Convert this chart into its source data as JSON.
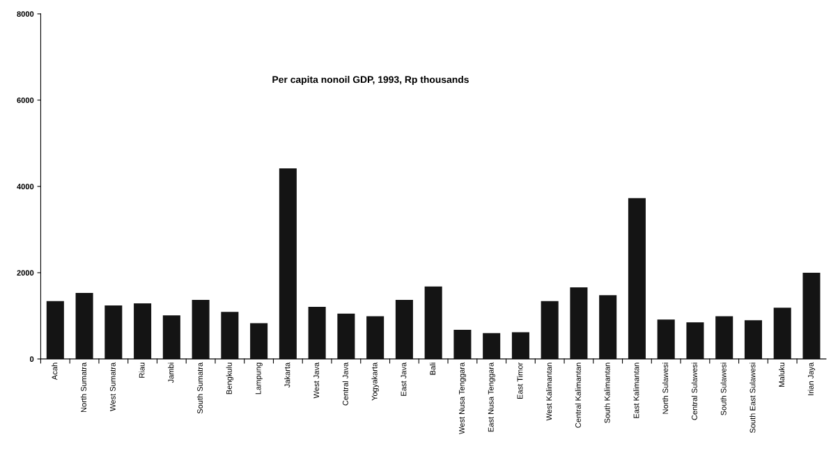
{
  "chart_data": {
    "type": "bar",
    "title": "Per capita nonoil GDP, 1993, Rp thousands",
    "categories": [
      "Acah",
      "North Sumatra",
      "West Sumatra",
      "Riau",
      "Jambi",
      "South Sumatra",
      "Bengkulu",
      "Lampung",
      "Jakarta",
      "West Java",
      "Central Java",
      "Yogyakarta",
      "East Java",
      "Bali",
      "West Nusa Tenggara",
      "East Nusa Tenggara",
      "East Timor",
      "West Kalimantan",
      "Central Kalimantan",
      "South Kalimantan",
      "East Kalimantan",
      "North Sulawesi",
      "Central Sulawesi",
      "South Sulawesi",
      "South East Sulawesi",
      "Maluku",
      "Irian Jaya"
    ],
    "values": [
      1340,
      1530,
      1240,
      1290,
      1010,
      1370,
      1090,
      830,
      4420,
      1210,
      1050,
      990,
      1370,
      1680,
      675,
      600,
      620,
      1340,
      1660,
      1480,
      3730,
      915,
      850,
      990,
      900,
      1190,
      2000
    ],
    "color": "#141414",
    "ylim": [
      0,
      8000
    ],
    "yticks": [
      0,
      2000,
      4000,
      6000,
      8000
    ],
    "grid": false
  }
}
